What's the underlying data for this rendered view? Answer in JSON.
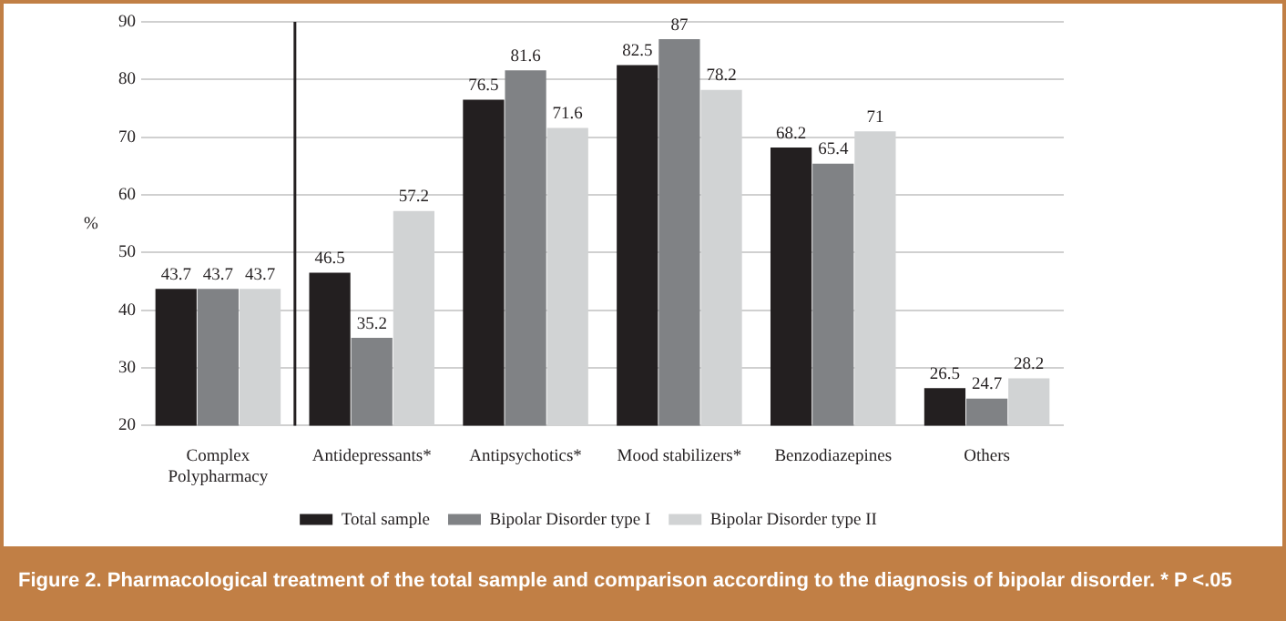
{
  "chart_data": {
    "type": "bar",
    "title": "Figure 2.  Pharmacological treatment of the total sample and comparison according to the diagnosis of bipolar disorder. * P <.05",
    "ylabel": "%",
    "categories": [
      "Complex\nPolypharmacy",
      "Antidepressants*",
      "Antipsychotics*",
      "Mood stabilizers*",
      "Benzodiazepines",
      "Others"
    ],
    "series": [
      {
        "name": "Total sample",
        "color": "#231f20",
        "values": [
          43.7,
          46.5,
          76.5,
          82.5,
          68.2,
          26.5
        ]
      },
      {
        "name": "Bipolar Disorder type I",
        "color": "#808285",
        "values": [
          43.7,
          35.2,
          81.6,
          87,
          65.4,
          24.7
        ]
      },
      {
        "name": "Bipolar Disorder type II",
        "color": "#d1d3d4",
        "values": [
          43.7,
          57.2,
          71.6,
          78.2,
          71,
          28.2
        ]
      }
    ],
    "ylim": [
      20,
      90
    ],
    "yticks": [
      20,
      30,
      40,
      50,
      60,
      70,
      80,
      90
    ],
    "grid": "y",
    "legend": "bottom",
    "data_labels": true,
    "ref_lines": [
      {
        "axis": "x",
        "value": "Antidepressants*",
        "color": "#231f20"
      }
    ]
  }
}
